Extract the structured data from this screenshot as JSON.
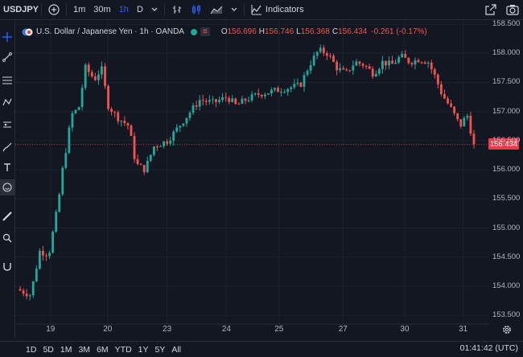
{
  "toolbar": {
    "symbol": "USDJPY",
    "add_symbol": "+",
    "intervals": [
      "1m",
      "30m",
      "1h",
      "D"
    ],
    "active_interval": "1h",
    "indicators_label": "Indicators"
  },
  "legend": {
    "title": "U.S. Dollar / Japanese Yen · 1h · OANDA",
    "open_label": "O",
    "open": "156.696",
    "high_label": "H",
    "high": "156.746",
    "low_label": "L",
    "low": "156.368",
    "close_label": "C",
    "close": "156.434",
    "change": "-0.261 (-0.17%)"
  },
  "chart_data": {
    "type": "candlestick",
    "symbol": "USDJPY",
    "interval": "1h",
    "x_ticks": [
      "19",
      "20",
      "23",
      "24",
      "25",
      "27",
      "30",
      "31"
    ],
    "y_ticks": [
      153.5,
      154.0,
      154.5,
      155.0,
      155.5,
      156.0,
      156.5,
      157.0,
      157.5,
      158.0,
      158.5
    ],
    "ylim": [
      153.35,
      158.57
    ],
    "last_price": 156.434,
    "up_color": "#26a69a",
    "down_color": "#ef5350",
    "price_path": [
      [
        0.0,
        153.95
      ],
      [
        0.03,
        153.85
      ],
      [
        0.05,
        154.6
      ],
      [
        0.07,
        154.55
      ],
      [
        0.09,
        155.4
      ],
      [
        0.1,
        156.0
      ],
      [
        0.12,
        156.95
      ],
      [
        0.135,
        157.05
      ],
      [
        0.15,
        157.75
      ],
      [
        0.17,
        157.55
      ],
      [
        0.185,
        157.75
      ],
      [
        0.2,
        157.1
      ],
      [
        0.22,
        156.9
      ],
      [
        0.245,
        156.75
      ],
      [
        0.26,
        156.1
      ],
      [
        0.28,
        156.0
      ],
      [
        0.3,
        156.4
      ],
      [
        0.33,
        156.5
      ],
      [
        0.36,
        156.8
      ],
      [
        0.385,
        157.05
      ],
      [
        0.4,
        157.2
      ],
      [
        0.43,
        157.15
      ],
      [
        0.46,
        157.25
      ],
      [
        0.48,
        157.1
      ],
      [
        0.5,
        157.2
      ],
      [
        0.53,
        157.3
      ],
      [
        0.56,
        157.35
      ],
      [
        0.59,
        157.4
      ],
      [
        0.62,
        157.45
      ],
      [
        0.64,
        157.8
      ],
      [
        0.66,
        158.05
      ],
      [
        0.68,
        158.0
      ],
      [
        0.7,
        157.75
      ],
      [
        0.72,
        157.65
      ],
      [
        0.74,
        157.85
      ],
      [
        0.76,
        157.8
      ],
      [
        0.78,
        157.65
      ],
      [
        0.8,
        157.85
      ],
      [
        0.82,
        157.8
      ],
      [
        0.84,
        157.95
      ],
      [
        0.86,
        157.85
      ],
      [
        0.88,
        157.9
      ],
      [
        0.9,
        157.85
      ],
      [
        0.915,
        157.6
      ],
      [
        0.93,
        157.3
      ],
      [
        0.95,
        157.05
      ],
      [
        0.97,
        156.75
      ],
      [
        0.985,
        156.95
      ],
      [
        1.0,
        156.43
      ]
    ]
  },
  "price_label": "156.434",
  "bottombar": {
    "ranges": [
      "1D",
      "5D",
      "1M",
      "3M",
      "6M",
      "YTD",
      "1Y",
      "5Y",
      "All"
    ],
    "clock": "01:41:42 (UTC)"
  }
}
